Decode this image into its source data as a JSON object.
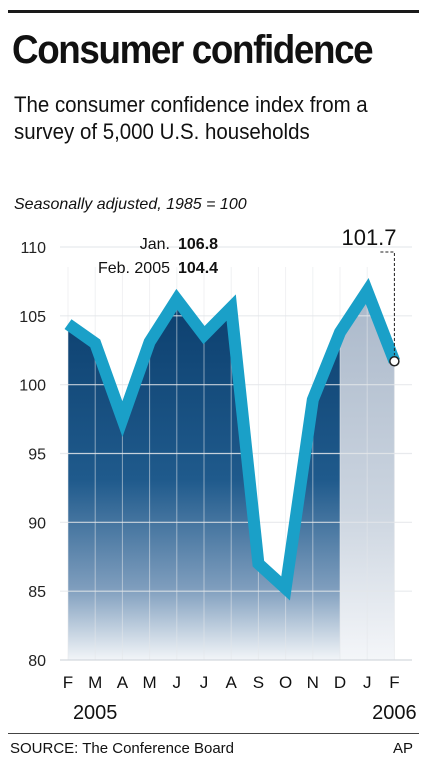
{
  "header": {
    "title": "Consumer confidence",
    "subtitle": "The consumer confidence index from a survey of 5,000 U.S. households",
    "note": "Seasonally adjusted, 1985 = 100"
  },
  "footer": {
    "source": "SOURCE: The Conference Board",
    "credit": "AP"
  },
  "chart_data": {
    "type": "area",
    "title": "Consumer confidence",
    "subtitle": "The consumer confidence index from a survey of 5,000 U.S. households",
    "xlabel": "",
    "ylabel": "",
    "ylim": [
      80,
      110
    ],
    "yticks": [
      80,
      85,
      90,
      95,
      100,
      105,
      110
    ],
    "grid": true,
    "categories": [
      "F",
      "M",
      "A",
      "M",
      "J",
      "J",
      "A",
      "S",
      "O",
      "N",
      "D",
      "J",
      "F"
    ],
    "year_labels": [
      {
        "label": "2005",
        "category_index": 1
      },
      {
        "label": "2006",
        "category_index": 12
      }
    ],
    "series": [
      {
        "values": [
          104.4,
          103.0,
          97.5,
          103.1,
          106.2,
          103.6,
          105.6,
          87.0,
          85.2,
          98.9,
          103.8,
          106.8,
          101.7
        ]
      }
    ],
    "annotations": [
      {
        "lines": [
          {
            "label": "Jan.",
            "value": "106.8"
          },
          {
            "label": "Feb. 2005",
            "value": "104.4"
          }
        ]
      },
      {
        "label": "101.7",
        "category_index": 12
      }
    ],
    "colors": {
      "line": "#1aa0c8",
      "area_dark": "#0c3f6e",
      "area_light": "#b6c2d2",
      "grid": "#e4e7ea"
    }
  }
}
